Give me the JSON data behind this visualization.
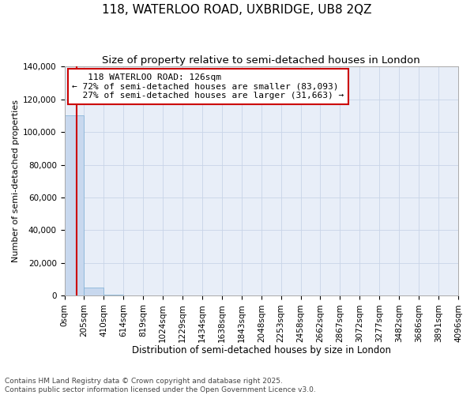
{
  "title": "118, WATERLOO ROAD, UXBRIDGE, UB8 2QZ",
  "subtitle": "Size of property relative to semi-detached houses in London",
  "xlabel": "Distribution of semi-detached houses by size in London",
  "ylabel": "Number of semi-detached properties",
  "property_size": 126,
  "property_label": "118 WATERLOO ROAD: 126sqm",
  "pct_smaller": 72,
  "n_smaller": 83093,
  "pct_larger": 27,
  "n_larger": 31663,
  "bin_edges": [
    0,
    205,
    410,
    614,
    819,
    1024,
    1229,
    1434,
    1638,
    1843,
    2048,
    2253,
    2458,
    2662,
    2867,
    3072,
    3277,
    3482,
    3686,
    3891,
    4096
  ],
  "bin_labels": [
    "0sqm",
    "205sqm",
    "410sqm",
    "614sqm",
    "819sqm",
    "1024sqm",
    "1229sqm",
    "1434sqm",
    "1638sqm",
    "1843sqm",
    "2048sqm",
    "2253sqm",
    "2458sqm",
    "2662sqm",
    "2867sqm",
    "3072sqm",
    "3277sqm",
    "3482sqm",
    "3686sqm",
    "3891sqm",
    "4096sqm"
  ],
  "bar_heights": [
    110000,
    5000,
    600,
    200,
    100,
    50,
    30,
    20,
    12,
    8,
    6,
    4,
    3,
    2,
    2,
    1,
    1,
    1,
    1,
    1
  ],
  "bar_color": "#c8d8ee",
  "bar_edge_color": "#7aadd4",
  "vline_color": "#cc0000",
  "annotation_box_color": "#cc0000",
  "background_color": "#ffffff",
  "plot_bg_color": "#e8eef8",
  "grid_color": "#c8d4e8",
  "ylim": [
    0,
    140000
  ],
  "yticks": [
    0,
    20000,
    40000,
    60000,
    80000,
    100000,
    120000,
    140000
  ],
  "footer_text": "Contains HM Land Registry data © Crown copyright and database right 2025.\nContains public sector information licensed under the Open Government Licence v3.0.",
  "title_fontsize": 11,
  "subtitle_fontsize": 9.5,
  "xlabel_fontsize": 8.5,
  "ylabel_fontsize": 8,
  "tick_fontsize": 7.5,
  "ann_fontsize": 8,
  "footer_fontsize": 6.5
}
